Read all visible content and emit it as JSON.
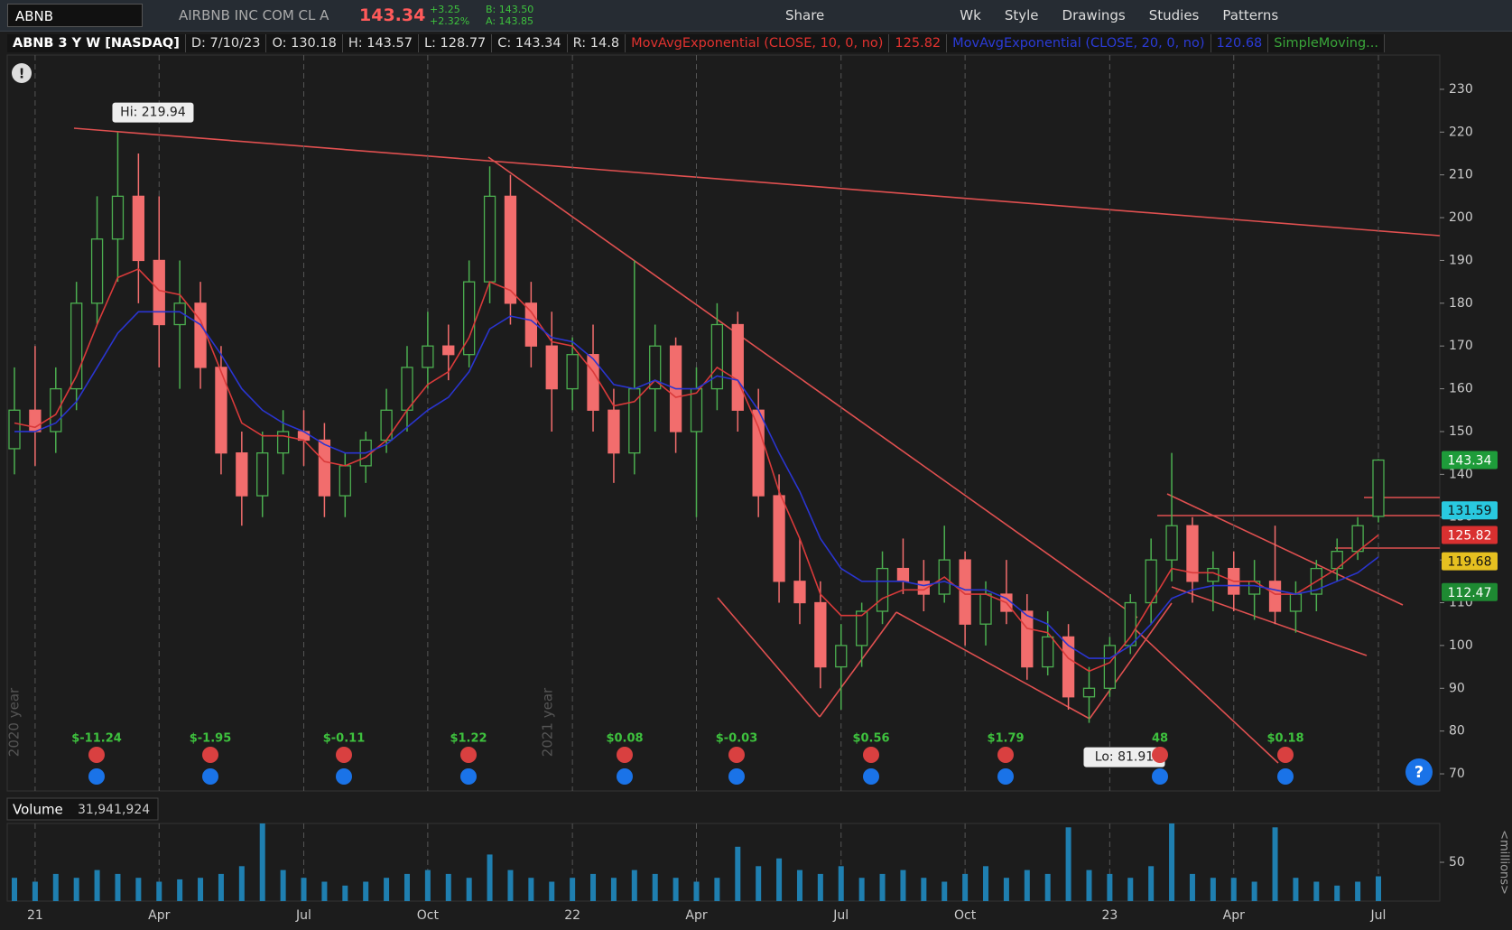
{
  "toolbar": {
    "symbol": "ABNB",
    "company": "AIRBNB INC COM CL A",
    "last": "143.34",
    "change": "+3.25",
    "change_pct": "+2.32%",
    "bid": "B: 143.50",
    "ask": "A: 143.85",
    "buttons": [
      "Share",
      "Wk",
      "Style",
      "Drawings",
      "Studies",
      "Patterns"
    ]
  },
  "chart_header": {
    "title": "ABNB 3 Y W [NASDAQ]",
    "date": "D: 7/10/23",
    "open": "O: 130.18",
    "high": "H: 143.57",
    "low": "L: 128.77",
    "close": "C: 143.34",
    "range": "R: 14.8",
    "ema10": "MovAvgExponential (CLOSE, 10, 0, no)",
    "ema10_value": "125.82",
    "ema20": "MovAvgExponential (CLOSE, 20, 0, no)",
    "ema20_value": "120.68",
    "sma": "SimpleMoving..."
  },
  "chart_data": {
    "type": "candlestick",
    "categories": [
      null,
      "21",
      null,
      null,
      null,
      null,
      null,
      "Apr",
      null,
      null,
      null,
      null,
      null,
      null,
      "Jul",
      null,
      null,
      null,
      null,
      null,
      "Oct",
      null,
      null,
      null,
      null,
      null,
      null,
      "22",
      null,
      null,
      null,
      null,
      null,
      "Apr",
      null,
      null,
      null,
      null,
      null,
      null,
      "Jul",
      null,
      null,
      null,
      null,
      null,
      "Oct",
      null,
      null,
      null,
      null,
      null,
      null,
      "23",
      null,
      null,
      null,
      null,
      null,
      "Apr",
      null,
      null,
      null,
      null,
      null,
      null,
      "Jul"
    ],
    "open": [
      146,
      155,
      150,
      160,
      180,
      195,
      205,
      190,
      175,
      180,
      165,
      145,
      135,
      145,
      150,
      148,
      135,
      142,
      148,
      155,
      165,
      170,
      168,
      185,
      205,
      180,
      170,
      160,
      168,
      155,
      145,
      160,
      170,
      150,
      160,
      175,
      155,
      135,
      115,
      110,
      95,
      100,
      108,
      118,
      115,
      112,
      120,
      105,
      112,
      108,
      95,
      102,
      88,
      90,
      100,
      110,
      120,
      128,
      115,
      118,
      112,
      115,
      108,
      112,
      118,
      122,
      130.18
    ],
    "high": [
      165,
      170,
      165,
      185,
      205,
      219.94,
      215,
      205,
      190,
      185,
      170,
      150,
      150,
      155,
      155,
      152,
      145,
      150,
      160,
      170,
      178,
      175,
      190,
      212,
      210,
      185,
      178,
      172,
      175,
      160,
      190,
      175,
      172,
      165,
      180,
      178,
      160,
      140,
      125,
      115,
      105,
      110,
      122,
      125,
      120,
      128,
      122,
      115,
      120,
      112,
      108,
      105,
      95,
      102,
      112,
      125,
      145,
      130,
      122,
      122,
      120,
      128,
      115,
      120,
      125,
      130,
      143.57
    ],
    "low": [
      140,
      142,
      145,
      155,
      175,
      185,
      180,
      165,
      160,
      160,
      140,
      128,
      130,
      140,
      142,
      130,
      130,
      138,
      145,
      150,
      160,
      162,
      165,
      180,
      175,
      165,
      150,
      155,
      150,
      138,
      140,
      150,
      145,
      130,
      155,
      150,
      130,
      110,
      105,
      90,
      85,
      95,
      105,
      112,
      108,
      110,
      100,
      100,
      105,
      92,
      93,
      85,
      81.91,
      88,
      98,
      105,
      115,
      110,
      108,
      108,
      106,
      105,
      103,
      108,
      115,
      120,
      128.77
    ],
    "close": [
      155,
      150,
      160,
      180,
      195,
      205,
      190,
      175,
      180,
      165,
      145,
      135,
      145,
      150,
      148,
      135,
      142,
      148,
      155,
      165,
      170,
      168,
      185,
      205,
      180,
      170,
      160,
      168,
      155,
      145,
      160,
      170,
      150,
      160,
      175,
      155,
      135,
      115,
      110,
      95,
      100,
      108,
      118,
      115,
      112,
      120,
      105,
      112,
      108,
      95,
      102,
      88,
      90,
      100,
      110,
      120,
      128,
      115,
      118,
      112,
      115,
      108,
      112,
      118,
      122,
      128,
      143.34
    ],
    "up_color": "#4caf50",
    "down_color": "#f26d6d",
    "lines": [
      {
        "name": "MovAvgExponential (CLOSE, 10, 0, no)",
        "color": "#d93a3a",
        "values": [
          152,
          151,
          154,
          163,
          175,
          186,
          188,
          183,
          182,
          176,
          164,
          152,
          149,
          149,
          148,
          143,
          142,
          144,
          148,
          155,
          161,
          164,
          172,
          185,
          183,
          178,
          171,
          170,
          164,
          156,
          157,
          162,
          158,
          159,
          165,
          162,
          151,
          136,
          125,
          112,
          107,
          107,
          111,
          113,
          113,
          116,
          112,
          112,
          110,
          104,
          103,
          97,
          94,
          96,
          102,
          110,
          118,
          117,
          117,
          115,
          115,
          112,
          112,
          115,
          118,
          122,
          125.82
        ]
      },
      {
        "name": "MovAvgExponential (CLOSE, 20, 0, no)",
        "color": "#2a35d0",
        "values": [
          150,
          150,
          152,
          157,
          165,
          173,
          178,
          178,
          178,
          175,
          168,
          160,
          155,
          152,
          150,
          147,
          145,
          145,
          147,
          151,
          155,
          158,
          164,
          174,
          177,
          176,
          172,
          171,
          167,
          161,
          160,
          162,
          160,
          160,
          163,
          162,
          155,
          145,
          136,
          125,
          118,
          115,
          115,
          115,
          114,
          115,
          113,
          113,
          111,
          107,
          105,
          100,
          97,
          97,
          100,
          105,
          111,
          113,
          114,
          114,
          114,
          113,
          112,
          113,
          115,
          117,
          120.68
        ]
      }
    ],
    "ylim": [
      66,
      238
    ],
    "yticks": [
      70,
      80,
      90,
      100,
      110,
      120,
      130,
      140,
      150,
      160,
      170,
      180,
      190,
      200,
      210,
      220,
      230
    ],
    "x_grid": true,
    "price_labels": [
      {
        "value": 143.34,
        "color": "#1e9c3a"
      },
      {
        "value": 131.59,
        "color": "#29c9e0"
      },
      {
        "value": 125.82,
        "color": "#d93030"
      },
      {
        "value": 119.68,
        "color": "#e6c020"
      },
      {
        "value": 112.47,
        "color": "#1e8a32"
      }
    ],
    "annotations": {
      "high": "Hi: 219.94",
      "low": "Lo: 81.91",
      "year_2020": "2020 year",
      "year_2021": "2021 year"
    },
    "earnings": [
      "$-11.24",
      "$-1.95",
      "$-0.11",
      "$1.22",
      "$0.08",
      "$-0.03",
      "$0.56",
      "$1.79",
      "48",
      "$0.18"
    ],
    "volume": {
      "label": "Volume",
      "last": "31,941,924",
      "unit": "<millions>",
      "color": "#1f7fb0",
      "values": [
        30,
        25,
        35,
        30,
        40,
        35,
        30,
        25,
        28,
        30,
        35,
        45,
        100,
        40,
        30,
        25,
        20,
        25,
        30,
        35,
        40,
        35,
        30,
        60,
        40,
        30,
        25,
        30,
        35,
        30,
        40,
        35,
        30,
        25,
        30,
        70,
        45,
        55,
        40,
        35,
        45,
        30,
        35,
        40,
        30,
        25,
        35,
        45,
        30,
        40,
        35,
        95,
        40,
        35,
        30,
        45,
        100,
        35,
        30,
        30,
        25,
        95,
        30,
        25,
        20,
        25,
        31.941924
      ],
      "ylim": [
        0,
        100
      ],
      "yticks": [
        50
      ]
    }
  }
}
